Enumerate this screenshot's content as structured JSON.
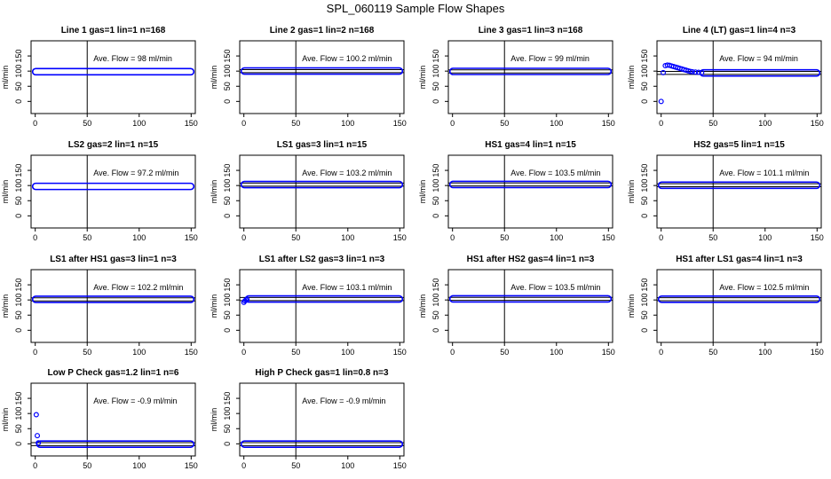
{
  "figure": {
    "title": "SPL_060119  Sample Flow Shapes"
  },
  "chart_data": [
    {
      "type": "scatter",
      "title": "Line 1 gas=1 lin=1 n=168",
      "ylabel": "ml/min",
      "annotation": "Ave. Flow =  98  ml/min",
      "xlim": [
        -4,
        154
      ],
      "ylim": [
        -40,
        200
      ],
      "xticks": [
        "0",
        "50",
        "100",
        "150"
      ],
      "yticks": [
        "0",
        "50",
        "100",
        "150"
      ],
      "ref_lines": {
        "v": 50,
        "h": []
      },
      "series": [
        {
          "segments": [
            {
              "x": [
                0,
                150
              ],
              "y": [
                98,
                98
              ]
            }
          ],
          "points": []
        }
      ]
    },
    {
      "type": "scatter",
      "title": "Line 2 gas=1 lin=2 n=168",
      "ylabel": "ml/min",
      "annotation": "Ave. Flow =  100.2  ml/min",
      "xlim": [
        -4,
        154
      ],
      "ylim": [
        -40,
        200
      ],
      "xticks": [
        "0",
        "50",
        "100",
        "150"
      ],
      "yticks": [
        "0",
        "50",
        "100",
        "150"
      ],
      "ref_lines": {
        "v": 50,
        "h": [
          105,
          95
        ]
      },
      "series": [
        {
          "segments": [
            {
              "x": [
                0,
                150
              ],
              "y": [
                100.2,
                100.2
              ]
            }
          ],
          "points": []
        }
      ]
    },
    {
      "type": "scatter",
      "title": "Line 3 gas=1 lin=3 n=168",
      "ylabel": "ml/min",
      "annotation": "Ave. Flow =  99  ml/min",
      "xlim": [
        -4,
        154
      ],
      "ylim": [
        -40,
        200
      ],
      "xticks": [
        "0",
        "50",
        "100",
        "150"
      ],
      "yticks": [
        "0",
        "50",
        "100",
        "150"
      ],
      "ref_lines": {
        "v": 50,
        "h": [
          104,
          94
        ]
      },
      "series": [
        {
          "segments": [
            {
              "x": [
                0,
                150
              ],
              "y": [
                99,
                99
              ]
            }
          ],
          "points": []
        }
      ]
    },
    {
      "type": "scatter",
      "title": "Line 4 (LT) gas=1 lin=4 n=3",
      "ylabel": "ml/min",
      "annotation": "Ave. Flow =  94  ml/min",
      "xlim": [
        -4,
        154
      ],
      "ylim": [
        -40,
        200
      ],
      "xticks": [
        "0",
        "50",
        "100",
        "150"
      ],
      "yticks": [
        "0",
        "50",
        "100",
        "150"
      ],
      "ref_lines": {
        "v": 50,
        "h": [
          99,
          89
        ]
      },
      "series": [
        {
          "segments": [
            {
              "x": [
                40,
                150
              ],
              "y": [
                94,
                94
              ]
            }
          ],
          "points": [
            {
              "x": 0,
              "y": 0
            },
            {
              "x": 2,
              "y": 95
            },
            {
              "x": 4,
              "y": 118
            },
            {
              "x": 6,
              "y": 120
            },
            {
              "x": 8,
              "y": 119
            },
            {
              "x": 10,
              "y": 117
            },
            {
              "x": 12,
              "y": 115
            },
            {
              "x": 14,
              "y": 113
            },
            {
              "x": 16,
              "y": 111
            },
            {
              "x": 18,
              "y": 109
            },
            {
              "x": 20,
              "y": 107
            },
            {
              "x": 22,
              "y": 105
            },
            {
              "x": 24,
              "y": 103
            },
            {
              "x": 26,
              "y": 101
            },
            {
              "x": 28,
              "y": 99
            },
            {
              "x": 30,
              "y": 98
            },
            {
              "x": 33,
              "y": 97
            },
            {
              "x": 36,
              "y": 96
            },
            {
              "x": 39,
              "y": 95
            }
          ]
        }
      ]
    },
    {
      "type": "scatter",
      "title": "LS2 gas=2 lin=1 n=15",
      "ylabel": "ml/min",
      "annotation": "Ave. Flow =  97.2  ml/min",
      "xlim": [
        -4,
        154
      ],
      "ylim": [
        -40,
        200
      ],
      "xticks": [
        "0",
        "50",
        "100",
        "150"
      ],
      "yticks": [
        "0",
        "50",
        "100",
        "150"
      ],
      "ref_lines": {
        "v": 50,
        "h": []
      },
      "series": [
        {
          "segments": [
            {
              "x": [
                0,
                150
              ],
              "y": [
                97.2,
                97.2
              ]
            }
          ],
          "points": []
        }
      ]
    },
    {
      "type": "scatter",
      "title": "LS1 gas=3 lin=1 n=15",
      "ylabel": "ml/min",
      "annotation": "Ave. Flow =  103.2  ml/min",
      "xlim": [
        -4,
        154
      ],
      "ylim": [
        -40,
        200
      ],
      "xticks": [
        "0",
        "50",
        "100",
        "150"
      ],
      "yticks": [
        "0",
        "50",
        "100",
        "150"
      ],
      "ref_lines": {
        "v": 50,
        "h": [
          108,
          98
        ]
      },
      "series": [
        {
          "segments": [
            {
              "x": [
                0,
                150
              ],
              "y": [
                103.2,
                103.2
              ]
            }
          ],
          "points": []
        }
      ]
    },
    {
      "type": "scatter",
      "title": "HS1 gas=4 lin=1 n=15",
      "ylabel": "ml/min",
      "annotation": "Ave. Flow =  103.5  ml/min",
      "xlim": [
        -4,
        154
      ],
      "ylim": [
        -40,
        200
      ],
      "xticks": [
        "0",
        "50",
        "100",
        "150"
      ],
      "yticks": [
        "0",
        "50",
        "100",
        "150"
      ],
      "ref_lines": {
        "v": 50,
        "h": [
          108.5,
          98.5
        ]
      },
      "series": [
        {
          "segments": [
            {
              "x": [
                0,
                150
              ],
              "y": [
                103.5,
                103.5
              ]
            }
          ],
          "points": []
        }
      ]
    },
    {
      "type": "scatter",
      "title": "HS2 gas=5 lin=1 n=15",
      "ylabel": "ml/min",
      "annotation": "Ave. Flow =  101.1  ml/min",
      "xlim": [
        -4,
        154
      ],
      "ylim": [
        -40,
        200
      ],
      "xticks": [
        "0",
        "50",
        "100",
        "150"
      ],
      "yticks": [
        "0",
        "50",
        "100",
        "150"
      ],
      "ref_lines": {
        "v": 50,
        "h": [
          106,
          96
        ]
      },
      "series": [
        {
          "segments": [
            {
              "x": [
                0,
                150
              ],
              "y": [
                101.1,
                101.1
              ]
            }
          ],
          "points": []
        }
      ]
    },
    {
      "type": "scatter",
      "title": "LS1 after HS1 gas=3 lin=1 n=3",
      "ylabel": "ml/min",
      "annotation": "Ave. Flow =  102.2  ml/min",
      "xlim": [
        -4,
        154
      ],
      "ylim": [
        -40,
        200
      ],
      "xticks": [
        "0",
        "50",
        "100",
        "150"
      ],
      "yticks": [
        "0",
        "50",
        "100",
        "150"
      ],
      "ref_lines": {
        "v": 50,
        "h": [
          107,
          97
        ]
      },
      "series": [
        {
          "segments": [
            {
              "x": [
                0,
                150
              ],
              "y": [
                102.2,
                102.2
              ]
            }
          ],
          "points": []
        }
      ]
    },
    {
      "type": "scatter",
      "title": "LS1 after LS2 gas=3 lin=1 n=3",
      "ylabel": "ml/min",
      "annotation": "Ave. Flow =  103.1  ml/min",
      "xlim": [
        -4,
        154
      ],
      "ylim": [
        -40,
        200
      ],
      "xticks": [
        "0",
        "50",
        "100",
        "150"
      ],
      "yticks": [
        "0",
        "50",
        "100",
        "150"
      ],
      "ref_lines": {
        "v": 50,
        "h": [
          108,
          98
        ]
      },
      "series": [
        {
          "segments": [
            {
              "x": [
                4,
                150
              ],
              "y": [
                103.1,
                103.1
              ]
            }
          ],
          "points": [
            {
              "x": 0,
              "y": 92
            },
            {
              "x": 1,
              "y": 97
            },
            {
              "x": 2,
              "y": 100
            },
            {
              "x": 3,
              "y": 102
            }
          ]
        }
      ]
    },
    {
      "type": "scatter",
      "title": "HS1 after HS2 gas=4 lin=1 n=3",
      "ylabel": "ml/min",
      "annotation": "Ave. Flow =  103.5  ml/min",
      "xlim": [
        -4,
        154
      ],
      "ylim": [
        -40,
        200
      ],
      "xticks": [
        "0",
        "50",
        "100",
        "150"
      ],
      "yticks": [
        "0",
        "50",
        "100",
        "150"
      ],
      "ref_lines": {
        "v": 50,
        "h": [
          108.5,
          98.5
        ]
      },
      "series": [
        {
          "segments": [
            {
              "x": [
                0,
                150
              ],
              "y": [
                103.5,
                103.5
              ]
            }
          ],
          "points": []
        }
      ]
    },
    {
      "type": "scatter",
      "title": "HS1 after LS1 gas=4 lin=1 n=3",
      "ylabel": "ml/min",
      "annotation": "Ave. Flow =  102.5  ml/min",
      "xlim": [
        -4,
        154
      ],
      "ylim": [
        -40,
        200
      ],
      "xticks": [
        "0",
        "50",
        "100",
        "150"
      ],
      "yticks": [
        "0",
        "50",
        "100",
        "150"
      ],
      "ref_lines": {
        "v": 50,
        "h": [
          107.5,
          97.5
        ]
      },
      "series": [
        {
          "segments": [
            {
              "x": [
                0,
                150
              ],
              "y": [
                102.5,
                102.5
              ]
            }
          ],
          "points": []
        }
      ]
    },
    {
      "type": "scatter",
      "title": "Low P Check gas=1.2 lin=1 n=6",
      "ylabel": "ml/min",
      "annotation": "Ave. Flow =  -0.9  ml/min",
      "xlim": [
        -4,
        154
      ],
      "ylim": [
        -40,
        200
      ],
      "xticks": [
        "0",
        "50",
        "100",
        "150"
      ],
      "yticks": [
        "0",
        "50",
        "100",
        "150"
      ],
      "ref_lines": {
        "v": 50,
        "h": [
          4,
          -6
        ]
      },
      "series": [
        {
          "segments": [
            {
              "x": [
                4,
                150
              ],
              "y": [
                -0.9,
                -0.9
              ]
            }
          ],
          "points": [
            {
              "x": 1,
              "y": 96
            },
            {
              "x": 2,
              "y": 27
            },
            {
              "x": 3,
              "y": 3
            }
          ]
        }
      ]
    },
    {
      "type": "scatter",
      "title": "High P Check gas=1 lin=0.8 n=3",
      "ylabel": "ml/min",
      "annotation": "Ave. Flow =  -0.9  ml/min",
      "xlim": [
        -4,
        154
      ],
      "ylim": [
        -40,
        200
      ],
      "xticks": [
        "0",
        "50",
        "100",
        "150"
      ],
      "yticks": [
        "0",
        "50",
        "100",
        "150"
      ],
      "ref_lines": {
        "v": 50,
        "h": [
          4,
          -6
        ]
      },
      "series": [
        {
          "segments": [
            {
              "x": [
                0,
                150
              ],
              "y": [
                -0.9,
                -0.9
              ]
            }
          ],
          "points": []
        }
      ]
    }
  ],
  "colors": {
    "points": "#0000ff",
    "axes": "#000000"
  }
}
